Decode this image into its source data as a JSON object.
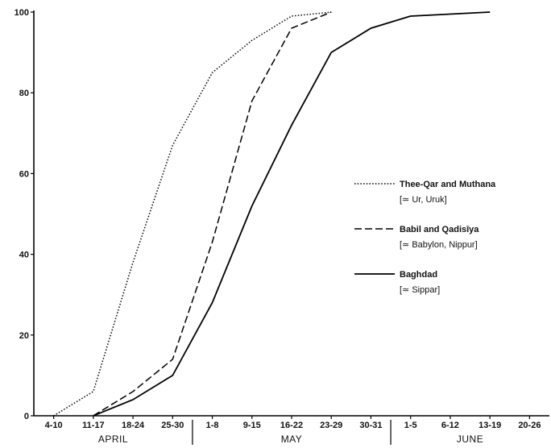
{
  "chart_data": {
    "type": "line",
    "x": [
      "4-10",
      "11-17",
      "18-24",
      "25-30",
      "1-8",
      "9-15",
      "16-22",
      "23-29",
      "30-31",
      "1-5",
      "6-12",
      "13-19",
      "20-26"
    ],
    "month_groups": [
      {
        "label": "APRIL",
        "start": 0,
        "end": 3
      },
      {
        "label": "MAY",
        "start": 4,
        "end": 8
      },
      {
        "label": "JUNE",
        "start": 9,
        "end": 12
      }
    ],
    "ylim": [
      0,
      100
    ],
    "yticks": [
      0,
      20,
      40,
      60,
      80,
      100
    ],
    "series": [
      {
        "name": "Thee-Qar and Muthana",
        "subname": "[≃ Ur, Uruk]",
        "style": "dotted",
        "color": "#000000",
        "values": [
          0,
          6,
          38,
          67,
          85,
          93,
          99,
          100,
          null,
          null,
          null,
          null,
          null
        ]
      },
      {
        "name": "Babil and Qadisīya",
        "subname": "[≃ Babylon, Nippur]",
        "style": "dashed",
        "color": "#000000",
        "values": [
          null,
          0,
          6,
          14,
          43,
          78,
          96,
          100,
          null,
          null,
          null,
          null,
          null
        ]
      },
      {
        "name": "Baghdad",
        "subname": "[≃ Sippar]",
        "style": "solid",
        "color": "#000000",
        "values": [
          null,
          0,
          4,
          10,
          28,
          52,
          72,
          90,
          96,
          99,
          99.5,
          100,
          null
        ]
      }
    ],
    "legend_position": "right",
    "grid": false
  }
}
